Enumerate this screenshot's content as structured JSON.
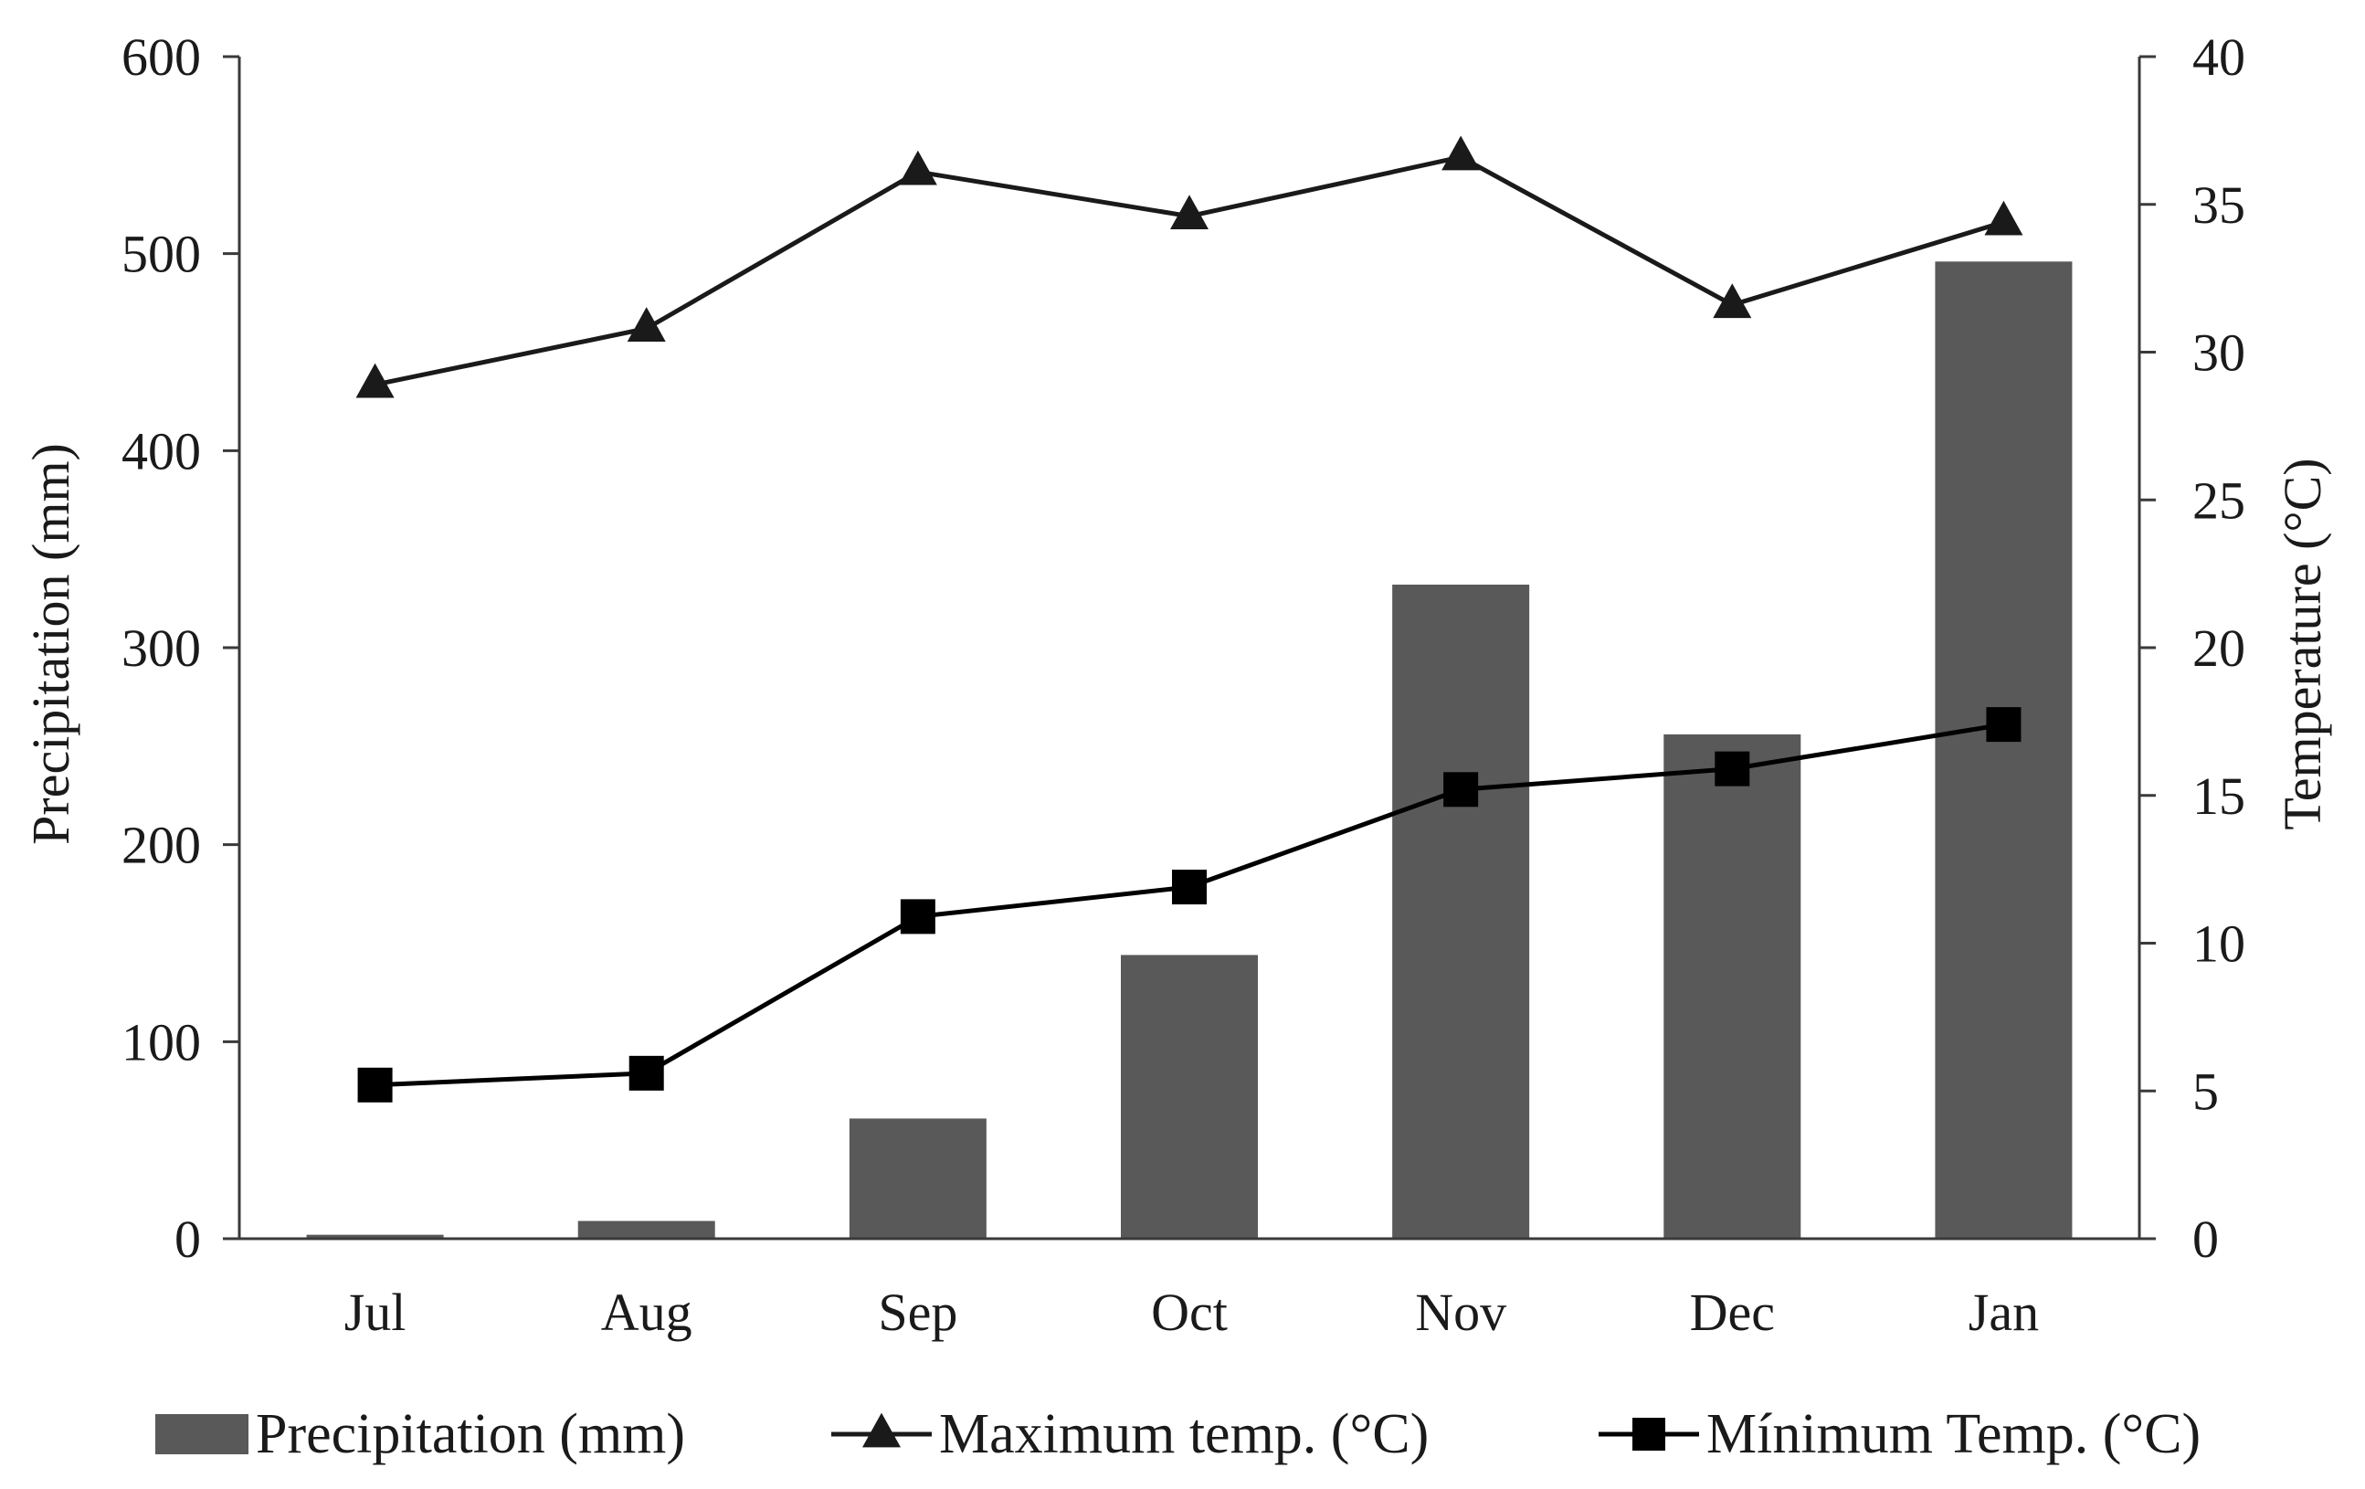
{
  "chart_data": {
    "type": "bar+line",
    "categories": [
      "Jul",
      "Aug",
      "Sep",
      "Oct",
      "Nov",
      "Dec",
      "Jan"
    ],
    "left_axis": {
      "label": "Precipitation (mm)",
      "range": [
        0,
        600
      ],
      "ticks": [
        0,
        100,
        200,
        300,
        400,
        500,
        600
      ]
    },
    "right_axis": {
      "label": "Temperature (°C)",
      "range": [
        0,
        40
      ],
      "ticks": [
        0,
        5,
        10,
        15,
        20,
        25,
        30,
        35,
        40
      ]
    },
    "series": [
      {
        "name": "Precipitation (mm)",
        "kind": "bar",
        "axis": "left",
        "color": "#595959",
        "values": [
          2,
          9,
          61,
          144,
          332,
          256,
          496
        ]
      },
      {
        "name": "Maximum temp. (°C)",
        "kind": "line",
        "axis": "right",
        "marker": "triangle",
        "color": "#1a1a1a",
        "values": [
          28.9,
          30.8,
          36.1,
          34.6,
          36.6,
          31.6,
          34.4
        ]
      },
      {
        "name": "Mínimum Temp. (°C)",
        "kind": "line",
        "axis": "right",
        "marker": "square",
        "color": "#000000",
        "values": [
          5.2,
          5.6,
          10.9,
          11.9,
          15.2,
          15.9,
          17.4
        ]
      }
    ],
    "legend_position": "bottom",
    "grid": false
  }
}
